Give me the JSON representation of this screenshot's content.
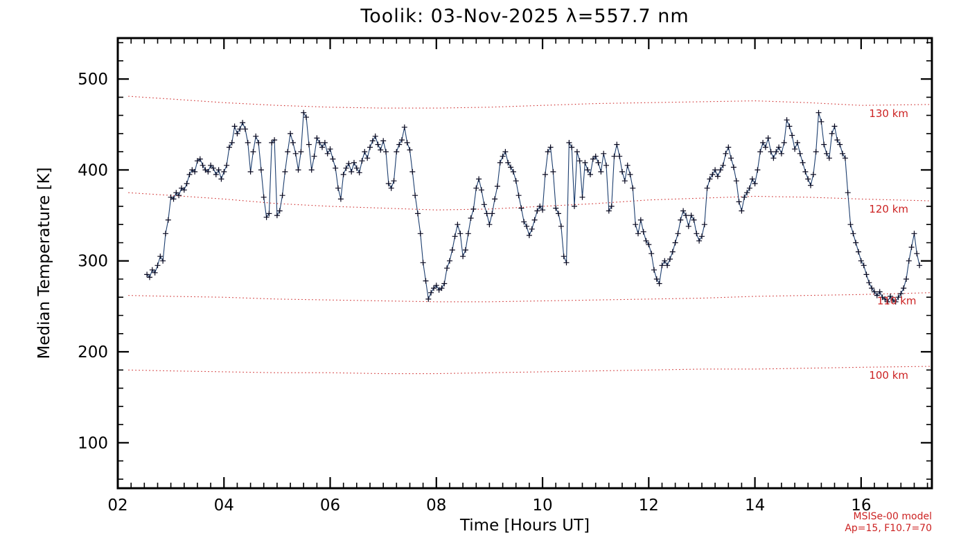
{
  "chart_data": {
    "type": "line",
    "title": "Toolik: 03-Nov-2025 λ=557.7 nm",
    "xlabel": "Time [Hours UT]",
    "ylabel": "Median Temperature [K]",
    "xlim": [
      2,
      17.333
    ],
    "ylim": [
      50,
      545
    ],
    "x_ticks": [
      {
        "v": 2,
        "label": "02"
      },
      {
        "v": 4,
        "label": "04"
      },
      {
        "v": 6,
        "label": "06"
      },
      {
        "v": 8,
        "label": "08"
      },
      {
        "v": 10,
        "label": "10"
      },
      {
        "v": 12,
        "label": "12"
      },
      {
        "v": 14,
        "label": "14"
      },
      {
        "v": 16,
        "label": "16"
      }
    ],
    "x_minor_step": 0.25,
    "y_ticks": [
      {
        "v": 100,
        "label": "100"
      },
      {
        "v": 200,
        "label": "200"
      },
      {
        "v": 300,
        "label": "300"
      },
      {
        "v": 400,
        "label": "400"
      },
      {
        "v": 500,
        "label": "500"
      }
    ],
    "y_minor_step": 20,
    "series": {
      "name": "median-temperature",
      "line_color": "#1b3d6e",
      "marker": "plus",
      "marker_color": "#06061e",
      "x_start": 2.55,
      "x_step": 0.05,
      "values": [
        285,
        282,
        290,
        287,
        295,
        305,
        300,
        330,
        345,
        370,
        368,
        375,
        372,
        380,
        378,
        385,
        395,
        400,
        398,
        410,
        412,
        405,
        400,
        398,
        405,
        402,
        395,
        400,
        390,
        398,
        405,
        425,
        430,
        448,
        440,
        445,
        452,
        445,
        430,
        398,
        420,
        437,
        430,
        400,
        370,
        348,
        352,
        430,
        433,
        350,
        355,
        372,
        398,
        420,
        440,
        430,
        418,
        400,
        420,
        463,
        458,
        428,
        400,
        415,
        435,
        430,
        425,
        430,
        418,
        423,
        412,
        402,
        380,
        368,
        395,
        402,
        407,
        398,
        408,
        402,
        397,
        410,
        420,
        413,
        425,
        432,
        437,
        428,
        422,
        432,
        420,
        385,
        380,
        388,
        420,
        428,
        433,
        447,
        430,
        422,
        398,
        372,
        352,
        330,
        298,
        278,
        258,
        265,
        270,
        273,
        268,
        270,
        275,
        292,
        300,
        312,
        327,
        340,
        330,
        305,
        312,
        330,
        347,
        357,
        380,
        390,
        378,
        362,
        352,
        340,
        352,
        368,
        382,
        408,
        415,
        420,
        408,
        403,
        398,
        388,
        372,
        358,
        343,
        338,
        328,
        335,
        345,
        355,
        360,
        356,
        395,
        420,
        425,
        398,
        358,
        352,
        338,
        305,
        298,
        430,
        425,
        360,
        420,
        410,
        370,
        408,
        400,
        395,
        412,
        415,
        408,
        398,
        418,
        405,
        355,
        360,
        415,
        428,
        415,
        398,
        388,
        405,
        395,
        380,
        340,
        330,
        345,
        332,
        322,
        318,
        308,
        290,
        280,
        275,
        295,
        300,
        295,
        302,
        310,
        320,
        330,
        345,
        355,
        350,
        338,
        350,
        345,
        330,
        322,
        327,
        340,
        380,
        390,
        395,
        400,
        393,
        400,
        405,
        418,
        425,
        413,
        403,
        388,
        365,
        355,
        370,
        375,
        380,
        390,
        385,
        400,
        420,
        430,
        425,
        435,
        420,
        413,
        420,
        425,
        418,
        430,
        455,
        448,
        438,
        423,
        430,
        418,
        408,
        398,
        390,
        383,
        395,
        420,
        463,
        453,
        428,
        418,
        413,
        440,
        448,
        433,
        428,
        418,
        413,
        375,
        340,
        330,
        320,
        310,
        300,
        295,
        285,
        276,
        270,
        266,
        262,
        266,
        260,
        258,
        255,
        261,
        257,
        255,
        260,
        264,
        270,
        280,
        300,
        315,
        330,
        308,
        295
      ]
    },
    "model_color": "#cc2222",
    "model_curves": [
      {
        "label": "130 km",
        "label_x": 16.15,
        "label_y": 462,
        "x": [
          2.2,
          3,
          4,
          5,
          6,
          7,
          8,
          9,
          10,
          11,
          12,
          13,
          14,
          15,
          16,
          17.3
        ],
        "y": [
          481,
          478,
          474,
          471,
          469,
          468,
          468,
          469,
          471,
          473,
          474,
          475,
          476,
          474,
          471,
          472
        ]
      },
      {
        "label": "120 km",
        "label_x": 16.15,
        "label_y": 357,
        "x": [
          2.2,
          3,
          4,
          5,
          6,
          7,
          8,
          9,
          10,
          11,
          12,
          13,
          14,
          15,
          16,
          17.3
        ],
        "y": [
          375,
          372,
          368,
          363,
          360,
          358,
          356,
          357,
          360,
          363,
          367,
          369,
          371,
          370,
          368,
          366
        ]
      },
      {
        "label": "110 km",
        "label_x": 16.3,
        "label_y": 256,
        "x": [
          2.2,
          3,
          4,
          5,
          6,
          7,
          8,
          9,
          10,
          11,
          12,
          13,
          14,
          15,
          16,
          17.3
        ],
        "y": [
          262,
          261,
          260,
          258,
          257,
          256,
          255,
          255,
          256,
          257,
          258,
          259,
          261,
          262,
          263,
          265
        ]
      },
      {
        "label": "100 km",
        "label_x": 16.15,
        "label_y": 174,
        "x": [
          2.2,
          3,
          4,
          5,
          6,
          7,
          8,
          9,
          10,
          11,
          12,
          13,
          14,
          15,
          16,
          17.3
        ],
        "y": [
          180,
          179,
          178,
          177,
          177,
          176,
          176,
          177,
          178,
          179,
          180,
          181,
          181,
          182,
          183,
          184
        ]
      }
    ],
    "annotations": {
      "model": "MSISe-00 model",
      "params": "Ap=15, F10.7=70"
    }
  }
}
